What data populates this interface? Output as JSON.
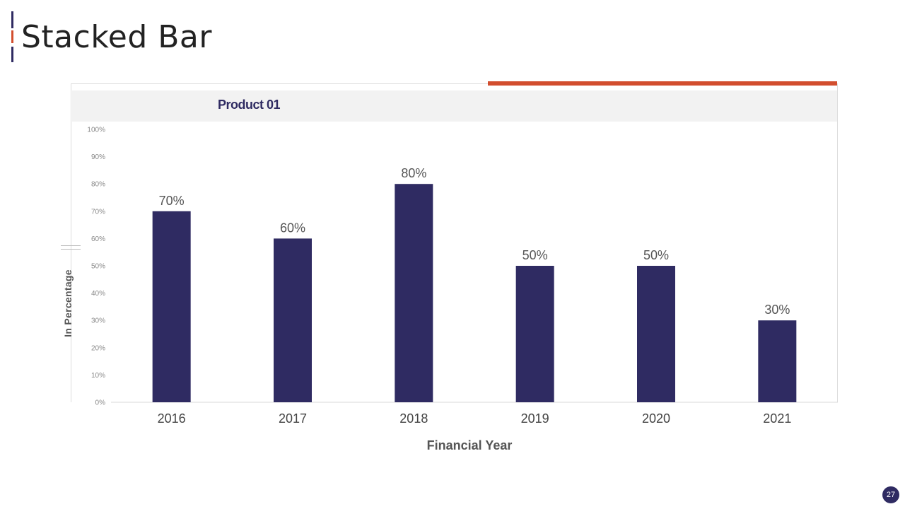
{
  "slide": {
    "title": "Stacked Bar",
    "page_number": "27"
  },
  "colors": {
    "bar": "#2f2b62",
    "accent": "#d24e2e",
    "axis_text": "#888888",
    "label_text": "#555555"
  },
  "chart_data": {
    "type": "bar",
    "title": "",
    "legend": [
      "Product 01"
    ],
    "legend_position": "top",
    "categories": [
      "2016",
      "2017",
      "2018",
      "2019",
      "2020",
      "2021"
    ],
    "series": [
      {
        "name": "Product 01",
        "values": [
          70,
          60,
          80,
          50,
          50,
          30
        ]
      }
    ],
    "data_labels": [
      "70%",
      "60%",
      "80%",
      "50%",
      "50%",
      "30%"
    ],
    "xlabel": "Financial Year",
    "ylabel": "In Percentage",
    "ylim": [
      0,
      100
    ],
    "yticks": [
      "0%",
      "10%",
      "20%",
      "30%",
      "40%",
      "50%",
      "60%",
      "70%",
      "80%",
      "90%",
      "100%"
    ],
    "grid": false
  }
}
